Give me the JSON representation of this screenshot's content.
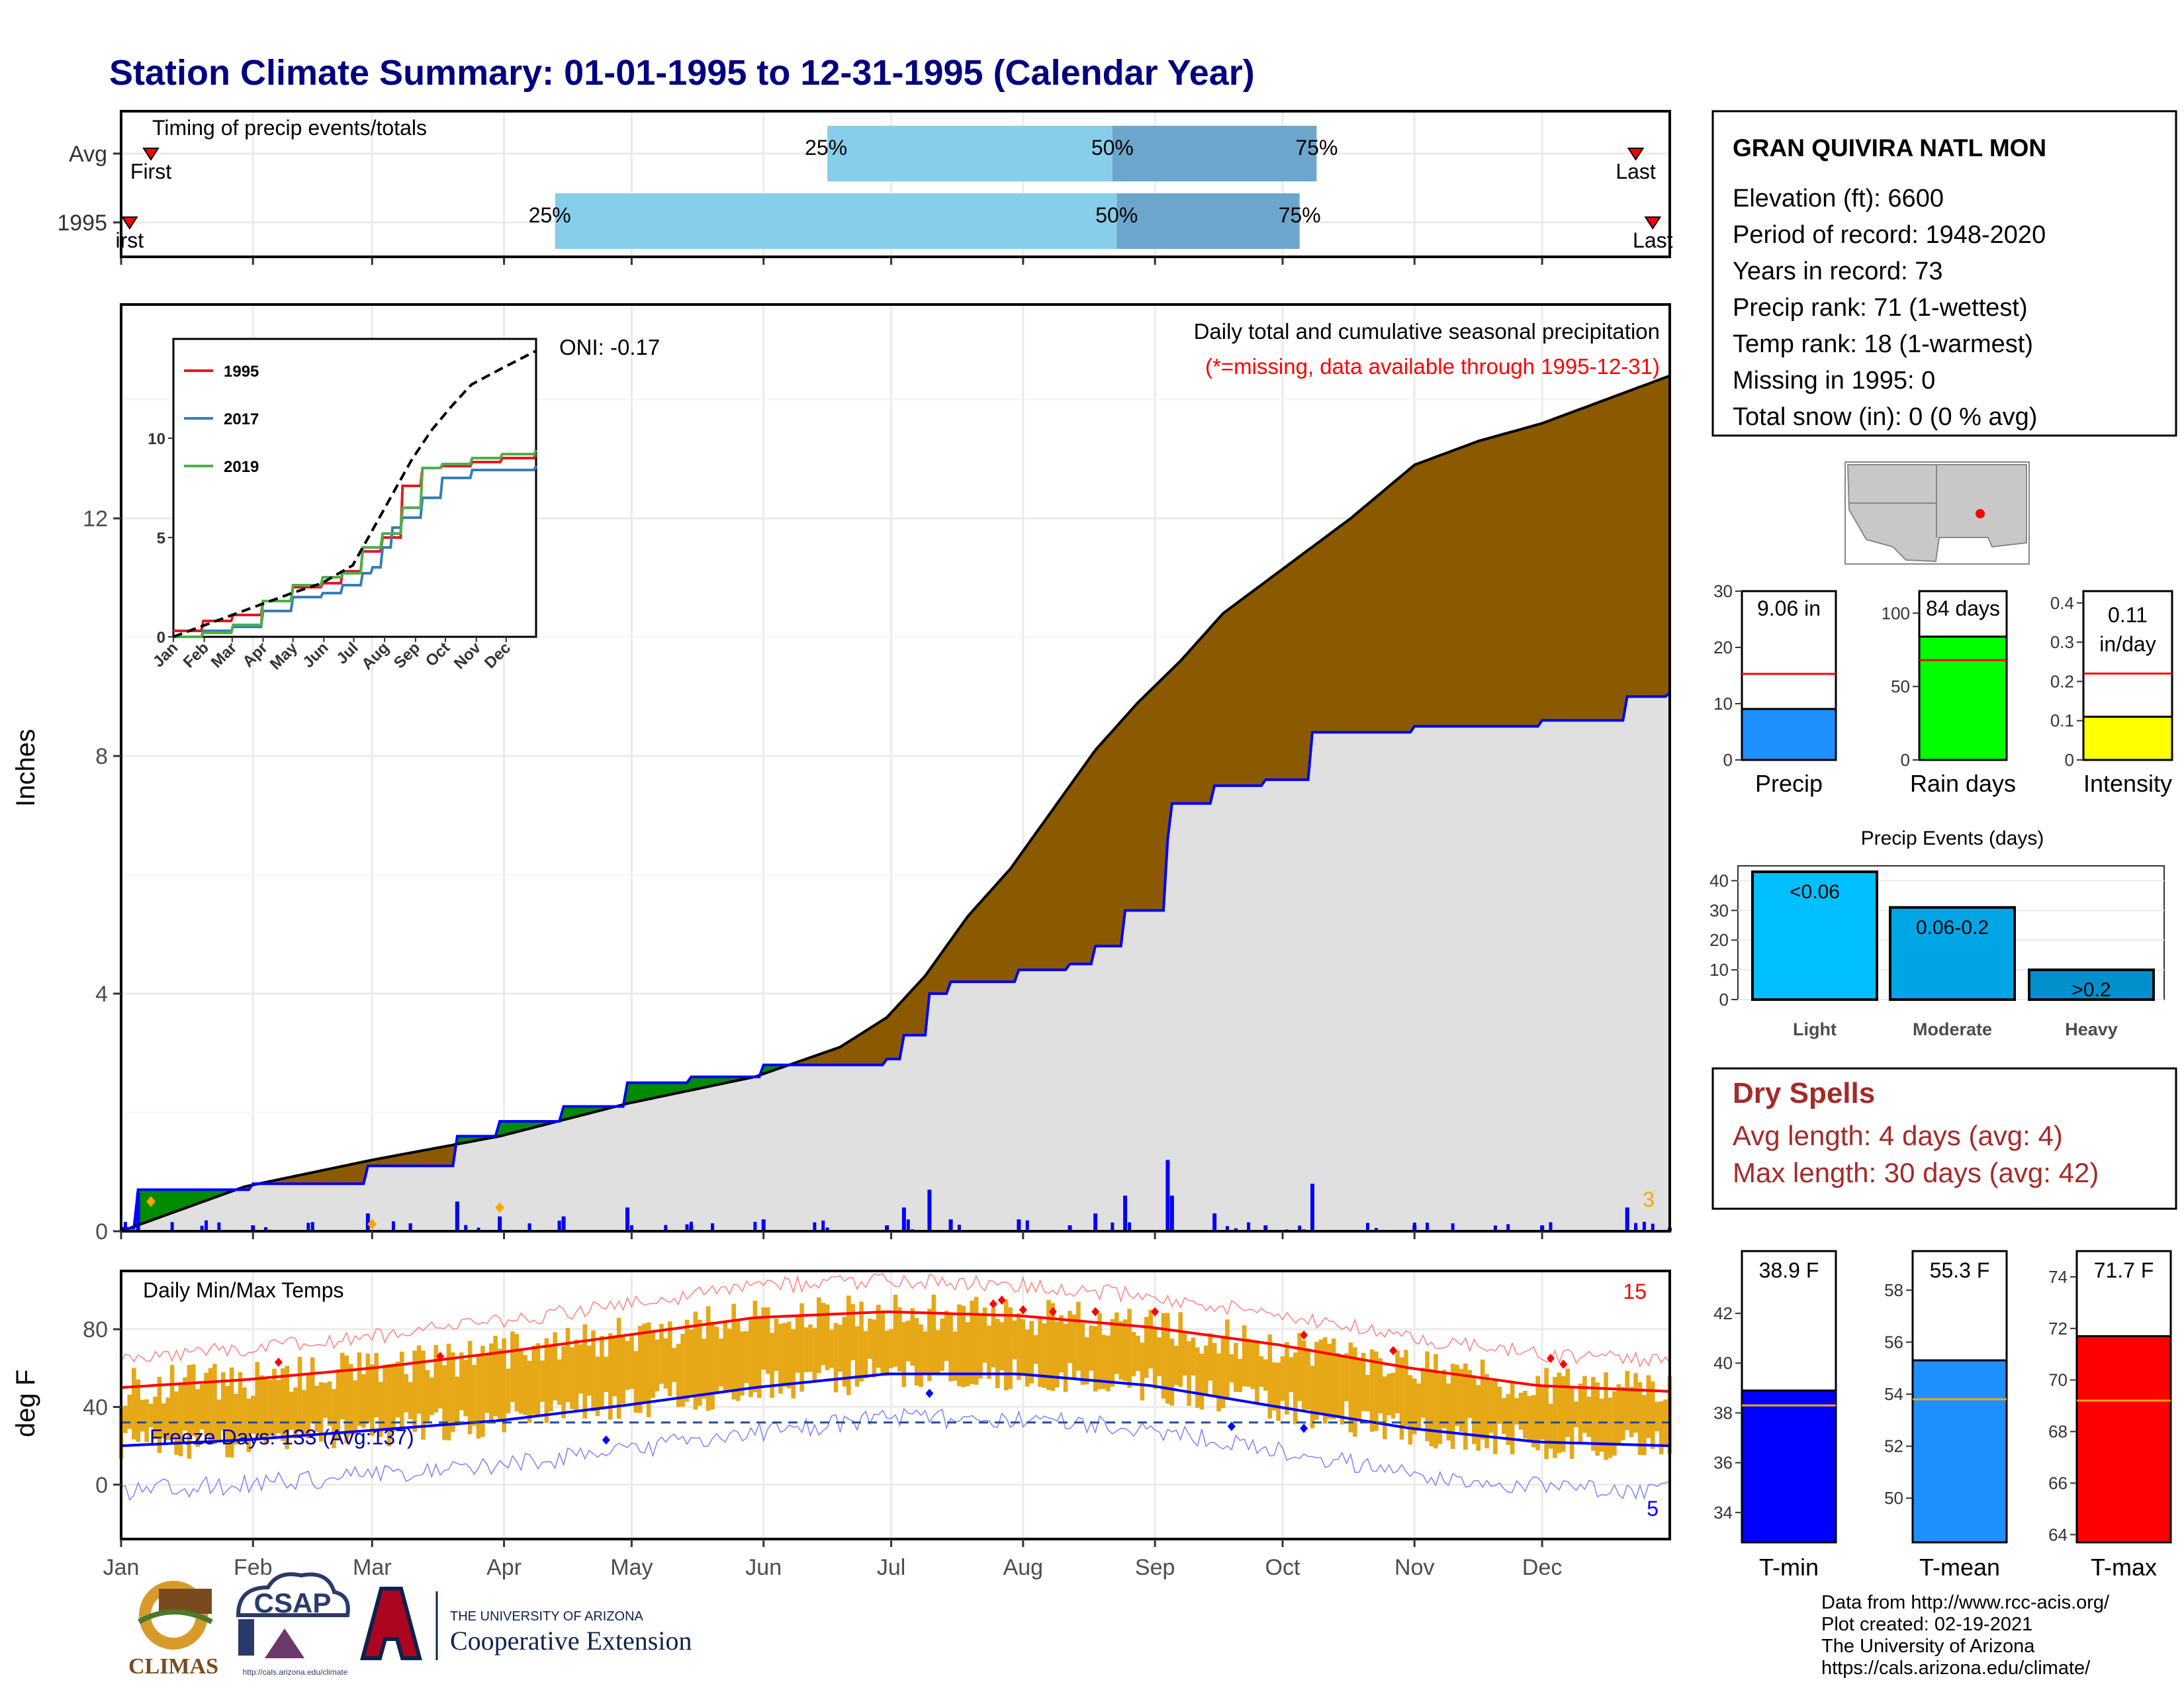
{
  "title": "Station Climate Summary: 01-01-1995 to 12-31-1995 (Calendar Year)",
  "colors": {
    "title": "#000080",
    "brown": "#8B5A00",
    "green": "#008B00",
    "grey_fill": "#E0E0E0",
    "blue": "#0000FF",
    "red": "#FF0000",
    "gold": "#E6A817",
    "light_blue": "#87CEEB",
    "mid_blue": "#6CA6CD",
    "dry_spell": "#A52A2A",
    "precip_bar": "#1E90FF",
    "rain_bar": "#00FF00",
    "intensity_bar": "#FFFF00",
    "orange": "#FFA500",
    "tmin_bar": "#0000FF",
    "tmean_bar": "#1E90FF",
    "tmax_bar": "#FF0000",
    "events_light": "#00BFFF",
    "events_mod": "#00A5E5",
    "events_heavy": "#0090CC"
  },
  "months": [
    "Jan",
    "Feb",
    "Mar",
    "Apr",
    "May",
    "Jun",
    "Jul",
    "Aug",
    "Sep",
    "Oct",
    "Nov",
    "Dec"
  ],
  "timing": {
    "label": "Timing of precip events/totals",
    "rows": [
      {
        "name": "Avg",
        "first": "First",
        "last": "Last",
        "p25": "25%",
        "p50": "50%",
        "p75": "75%",
        "q25_doy": 167,
        "q50_doy": 234,
        "q75_doy": 282,
        "first_doy": 8,
        "last_doy": 357
      },
      {
        "name": "1995",
        "first": "irst",
        "last": "Last",
        "p25": "25%",
        "p50": "50%",
        "p75": "75%",
        "q25_doy": 103,
        "q50_doy": 235,
        "q75_doy": 278,
        "first_doy": 3,
        "last_doy": 361
      }
    ]
  },
  "precip_panel": {
    "ylabel": "Inches",
    "yticks": [
      0,
      4,
      8,
      12
    ],
    "ylim": [
      0,
      15.6
    ],
    "header": "Daily total and cumulative seasonal precipitation",
    "missing_note": "(*=missing, data available through 1995-12-31)",
    "oni": "ONI: -0.17",
    "count_label": "3"
  },
  "chart_data": [
    {
      "type": "area",
      "name": "cumulative precipitation",
      "x_unit": "day of year",
      "ylim": [
        0,
        15.6
      ],
      "series": [
        {
          "name": "1995",
          "x": [
            1,
            5,
            10,
            32,
            59,
            80,
            90,
            105,
            120,
            135,
            152,
            166,
            181,
            185,
            191,
            196,
            212,
            224,
            230,
            237,
            247,
            248,
            258,
            270,
            281,
            305,
            335,
            355,
            365
          ],
          "y": [
            0.05,
            0.7,
            0.7,
            0.8,
            1.1,
            1.6,
            1.85,
            2.1,
            2.5,
            2.6,
            2.8,
            2.8,
            2.9,
            3.3,
            4.0,
            4.2,
            4.4,
            4.5,
            4.8,
            5.4,
            6.6,
            7.2,
            7.5,
            7.6,
            8.4,
            8.5,
            8.6,
            9.0,
            9.06
          ]
        },
        {
          "name": "Avg",
          "x": [
            1,
            30,
            60,
            90,
            120,
            150,
            170,
            181,
            190,
            200,
            210,
            220,
            230,
            240,
            250,
            260,
            275,
            290,
            305,
            320,
            335,
            350,
            365
          ],
          "y": [
            0.0,
            0.75,
            1.2,
            1.6,
            2.15,
            2.6,
            3.1,
            3.6,
            4.3,
            5.3,
            6.1,
            7.1,
            8.1,
            8.9,
            9.6,
            10.4,
            11.2,
            12.0,
            12.9,
            13.3,
            13.6,
            14.0,
            14.4
          ]
        }
      ]
    },
    {
      "type": "line",
      "name": "inset cumulative precipitation",
      "x_labels": [
        "Jan",
        "Feb",
        "Mar",
        "Apr",
        "May",
        "Jun",
        "Jul",
        "Aug",
        "Sep",
        "Oct",
        "Nov",
        "Dec"
      ],
      "yticks": [
        0,
        5,
        10
      ],
      "series": [
        {
          "name": "1995",
          "x": [
            1,
            30,
            60,
            90,
            120,
            150,
            170,
            190,
            210,
            230,
            250,
            270,
            300,
            330,
            365
          ],
          "y": [
            0.3,
            0.8,
            1.1,
            1.8,
            2.5,
            2.7,
            3.3,
            4.3,
            5.0,
            7.6,
            8.5,
            8.6,
            8.8,
            9.0,
            9.2
          ]
        },
        {
          "name": "2017",
          "x": [
            1,
            30,
            60,
            90,
            120,
            150,
            170,
            190,
            200,
            210,
            220,
            230,
            250,
            270,
            300,
            365
          ],
          "y": [
            0.0,
            0.3,
            0.5,
            1.3,
            2.0,
            2.2,
            2.6,
            3.2,
            3.5,
            4.5,
            5.5,
            6.0,
            7.0,
            8.0,
            8.4,
            8.6
          ]
        },
        {
          "name": "2019",
          "x": [
            1,
            30,
            60,
            90,
            120,
            150,
            170,
            190,
            210,
            230,
            250,
            270,
            300,
            330,
            365
          ],
          "y": [
            0.0,
            0.2,
            0.6,
            1.8,
            2.6,
            3.0,
            3.2,
            4.5,
            5.2,
            6.5,
            8.5,
            8.7,
            9.0,
            9.2,
            9.4
          ]
        },
        {
          "name": "Avg",
          "x": [
            1,
            60,
            120,
            150,
            181,
            200,
            220,
            240,
            260,
            280,
            300,
            330,
            365
          ],
          "y": [
            0.0,
            1.1,
            2.2,
            2.7,
            3.6,
            5.3,
            7.1,
            8.9,
            10.4,
            11.6,
            12.7,
            13.5,
            14.4
          ]
        }
      ]
    },
    {
      "type": "bar",
      "name": "daily min/max temperatures",
      "ylim": [
        -28,
        110
      ],
      "yticks": [
        0,
        40,
        80
      ],
      "ylabel": "deg F",
      "title": "Daily Min/Max Temps",
      "freeze_label": "Freeze Days: 133 (Avg:137)",
      "max_count": "15",
      "min_count": "5",
      "freeze_line": 32,
      "avg_max": {
        "x": [
          1,
          30,
          60,
          90,
          120,
          150,
          181,
          212,
          243,
          273,
          304,
          334,
          365
        ],
        "y": [
          50,
          54,
          60,
          68,
          77,
          86,
          89,
          87,
          81,
          72,
          60,
          51,
          48
        ]
      },
      "avg_min": {
        "x": [
          1,
          30,
          60,
          90,
          120,
          150,
          181,
          212,
          243,
          273,
          304,
          334,
          365
        ],
        "y": [
          20,
          23,
          28,
          33,
          41,
          50,
          57,
          57,
          51,
          40,
          29,
          22,
          20
        ]
      }
    },
    {
      "type": "bar",
      "name": "totals",
      "categories": [
        "Precip",
        "Rain days",
        "Intensity"
      ],
      "values": [
        9.06,
        84,
        0.11
      ],
      "averages": [
        15.3,
        68,
        0.22
      ],
      "labels": [
        "9.06 in",
        "84 days",
        "0.11"
      ],
      "sublabel_intensity": "in/day",
      "yticks": [
        [
          0,
          10,
          20,
          30
        ],
        [
          0,
          50,
          100
        ],
        [
          0.0,
          0.1,
          0.2,
          0.3,
          0.4
        ]
      ],
      "ylims": [
        [
          0,
          30
        ],
        [
          0,
          115
        ],
        [
          0,
          0.43
        ]
      ]
    },
    {
      "type": "bar",
      "name": "precip events",
      "title": "Precip Events (days)",
      "categories": [
        "Light",
        "Moderate",
        "Heavy"
      ],
      "values": [
        43,
        31,
        10
      ],
      "labels": [
        "<0.06",
        "0.06-0.2",
        ">0.2"
      ],
      "yticks": [
        0,
        10,
        20,
        30,
        40
      ],
      "ylim": [
        0,
        45
      ]
    },
    {
      "type": "bar",
      "name": "temperature means",
      "categories": [
        "T-min",
        "T-mean",
        "T-max"
      ],
      "values": [
        38.9,
        55.3,
        71.7
      ],
      "averages": [
        38.3,
        53.8,
        69.2
      ],
      "labels": [
        "38.9 F",
        "55.3 F",
        "71.7 F"
      ],
      "yticks": [
        [
          34,
          36,
          38,
          40,
          42
        ],
        [
          50,
          52,
          54,
          56,
          58
        ],
        [
          64,
          66,
          68,
          70,
          72,
          74
        ]
      ],
      "ylims": [
        [
          32.8,
          44.5
        ],
        [
          48.3,
          59.5
        ],
        [
          63.7,
          75
        ]
      ]
    }
  ],
  "station": {
    "name": "GRAN QUIVIRA NATL MON",
    "lines": [
      "Elevation (ft): 6600",
      "Period of record: 1948-2020",
      "Years in record: 73",
      "Precip rank: 71 (1-wettest)",
      "Temp rank: 18 (1-warmest)",
      "Missing in 1995: 0",
      "Total snow (in): 0 (0 % avg)"
    ]
  },
  "dry_spells": {
    "title": "Dry Spells",
    "avg": "Avg length: 4 days (avg: 4)",
    "max": "Max length: 30 days (avg: 42)"
  },
  "credits": [
    "Data from http://www.rcc-acis.org/",
    "Plot created: 02-19-2021",
    "The University of Arizona",
    "https://cals.arizona.edu/climate/"
  ],
  "logos": {
    "climas": "CLIMAS",
    "csap": "CSAP",
    "csap_url": "http://cals.arizona.edu/climate",
    "ua_line1": "THE UNIVERSITY OF ARIZONA",
    "ua_line2": "Cooperative Extension"
  }
}
